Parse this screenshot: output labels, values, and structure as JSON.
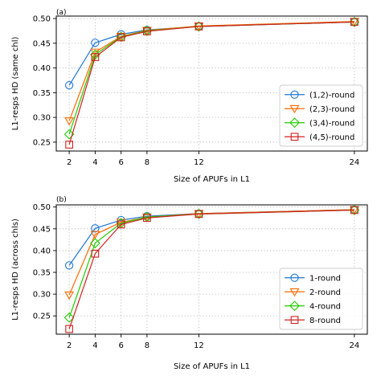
{
  "chart_data": [
    {
      "panel_label": "(a)",
      "type": "line",
      "xlabel": "Size of APUFs in L1",
      "ylabel": "L1-resps HD (same chl)",
      "x": [
        2,
        4,
        6,
        8,
        12,
        24
      ],
      "xticks": [
        2,
        4,
        6,
        8,
        12,
        24
      ],
      "yticks": [
        0.25,
        0.3,
        0.35,
        0.4,
        0.45,
        0.5
      ],
      "xlim": [
        1,
        25
      ],
      "ylim": [
        0.232,
        0.505
      ],
      "grid": true,
      "legend": "bottom-right",
      "series": [
        {
          "name": "(1,2)-round",
          "marker": "circle",
          "color": "#1f77d4",
          "values": [
            0.365,
            0.451,
            0.468,
            0.477,
            0.484,
            0.493
          ]
        },
        {
          "name": "(2,3)-round",
          "marker": "triangle",
          "color": "#ff6a00",
          "values": [
            0.293,
            0.432,
            0.464,
            0.476,
            0.485,
            0.494
          ]
        },
        {
          "name": "(3,4)-round",
          "marker": "diamond",
          "color": "#22cc00",
          "values": [
            0.266,
            0.427,
            0.463,
            0.475,
            0.484,
            0.493
          ]
        },
        {
          "name": "(4,5)-round",
          "marker": "square",
          "color": "#d21f1f",
          "values": [
            0.245,
            0.422,
            0.462,
            0.474,
            0.484,
            0.493
          ]
        }
      ]
    },
    {
      "panel_label": "(b)",
      "type": "line",
      "xlabel": "Size of APUFs in L1",
      "ylabel": "L1-resps HD (across chls)",
      "x": [
        2,
        4,
        6,
        8,
        12,
        24
      ],
      "xticks": [
        2,
        4,
        6,
        8,
        12,
        24
      ],
      "yticks": [
        0.25,
        0.3,
        0.35,
        0.4,
        0.45,
        0.5
      ],
      "xlim": [
        1,
        25
      ],
      "ylim": [
        0.208,
        0.505
      ],
      "grid": true,
      "legend": "bottom-right",
      "series": [
        {
          "name": "1-round",
          "marker": "circle",
          "color": "#1f77d4",
          "values": [
            0.366,
            0.451,
            0.47,
            0.479,
            0.485,
            0.494
          ]
        },
        {
          "name": "2-round",
          "marker": "triangle",
          "color": "#ff6a00",
          "values": [
            0.298,
            0.437,
            0.465,
            0.477,
            0.485,
            0.494
          ]
        },
        {
          "name": "4-round",
          "marker": "diamond",
          "color": "#22cc00",
          "values": [
            0.246,
            0.417,
            0.463,
            0.477,
            0.484,
            0.493
          ]
        },
        {
          "name": "8-round",
          "marker": "square",
          "color": "#d21f1f",
          "values": [
            0.22,
            0.393,
            0.46,
            0.475,
            0.484,
            0.493
          ]
        }
      ]
    }
  ]
}
